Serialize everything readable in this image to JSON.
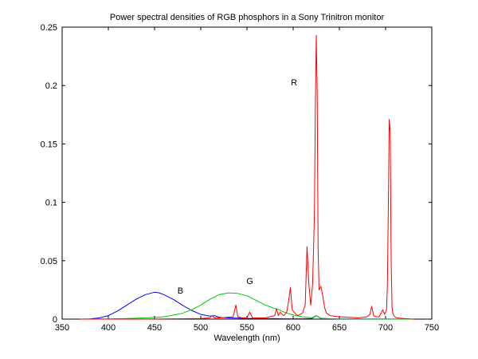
{
  "chart_data": {
    "type": "line",
    "title": "Power spectral densities of RGB phosphors in a Sony Trinitron monitor",
    "xlabel": "Wavelength (nm)",
    "ylabel": "",
    "xlim": [
      350,
      750
    ],
    "ylim": [
      0,
      0.25
    ],
    "x_ticks": [
      350,
      400,
      450,
      500,
      550,
      600,
      650,
      700,
      750
    ],
    "y_ticks": [
      0,
      0.05,
      0.1,
      0.15,
      0.2,
      0.25
    ],
    "x_tick_labels": [
      "350",
      "400",
      "450",
      "500",
      "550",
      "600",
      "650",
      "700",
      "750"
    ],
    "y_tick_labels": [
      "0",
      "0.05",
      "0.1",
      "0.15",
      "0.2",
      "0.25"
    ],
    "grid": false,
    "series": [
      {
        "name": "B",
        "color": "#0000ff",
        "x": [
          370,
          380,
          390,
          400,
          410,
          420,
          430,
          440,
          450,
          455,
          460,
          470,
          480,
          490,
          500,
          510,
          515,
          520,
          530,
          540,
          550,
          560,
          570,
          580,
          590,
          600,
          610,
          620,
          625,
          630,
          640,
          650,
          700,
          730
        ],
        "values": [
          0.0,
          0.0002,
          0.001,
          0.003,
          0.007,
          0.012,
          0.017,
          0.021,
          0.023,
          0.0225,
          0.021,
          0.017,
          0.012,
          0.0075,
          0.004,
          0.0025,
          0.003,
          0.0015,
          0.001,
          0.0008,
          0.0006,
          0.0005,
          0.0004,
          0.0004,
          0.0003,
          0.0003,
          0.0003,
          0.0005,
          0.003,
          0.0006,
          0.0003,
          0.0002,
          0.0001,
          0.0
        ]
      },
      {
        "name": "G",
        "color": "#00cc00",
        "x": [
          370,
          400,
          420,
          440,
          460,
          480,
          490,
          500,
          510,
          520,
          530,
          540,
          550,
          560,
          570,
          580,
          585,
          590,
          600,
          610,
          620,
          625,
          630,
          640,
          650,
          700,
          730
        ],
        "values": [
          0.0,
          0.0002,
          0.0005,
          0.001,
          0.002,
          0.005,
          0.008,
          0.012,
          0.017,
          0.021,
          0.0225,
          0.022,
          0.02,
          0.016,
          0.012,
          0.009,
          0.008,
          0.006,
          0.0035,
          0.002,
          0.001,
          0.003,
          0.0006,
          0.0004,
          0.0002,
          0.0001,
          0.0
        ]
      },
      {
        "name": "R",
        "color": "#ff0000",
        "x": [
          370,
          450,
          500,
          510,
          512,
          515,
          520,
          535,
          538,
          540,
          545,
          550,
          553,
          556,
          560,
          570,
          580,
          582,
          584,
          586,
          588,
          590,
          593,
          595,
          597,
          599,
          602,
          605,
          610,
          613,
          615,
          617,
          619,
          621,
          623,
          624,
          625,
          626,
          627,
          628,
          630,
          632,
          634,
          636,
          640,
          650,
          660,
          670,
          680,
          683,
          685,
          687,
          690,
          693,
          695,
          697,
          699,
          701,
          702,
          703,
          704,
          705,
          706,
          707,
          708,
          710,
          712,
          720,
          730
        ],
        "values": [
          0.0,
          0.0001,
          0.0005,
          0.001,
          0.003,
          0.001,
          0.001,
          0.002,
          0.012,
          0.002,
          0.001,
          0.001,
          0.006,
          0.001,
          0.001,
          0.001,
          0.003,
          0.009,
          0.003,
          0.006,
          0.004,
          0.003,
          0.006,
          0.015,
          0.027,
          0.008,
          0.005,
          0.003,
          0.005,
          0.012,
          0.062,
          0.03,
          0.012,
          0.03,
          0.09,
          0.18,
          0.243,
          0.19,
          0.06,
          0.025,
          0.028,
          0.02,
          0.01,
          0.005,
          0.003,
          0.002,
          0.0015,
          0.001,
          0.002,
          0.004,
          0.011,
          0.003,
          0.002,
          0.002,
          0.005,
          0.008,
          0.004,
          0.008,
          0.03,
          0.1,
          0.171,
          0.16,
          0.05,
          0.01,
          0.004,
          0.002,
          0.001,
          0.0005,
          0.0
        ]
      }
    ],
    "annotations": [
      {
        "text": "R",
        "x": 601,
        "y": 0.2
      },
      {
        "text": "G",
        "x": 553,
        "y": 0.03
      },
      {
        "text": "B",
        "x": 478,
        "y": 0.022
      }
    ]
  }
}
